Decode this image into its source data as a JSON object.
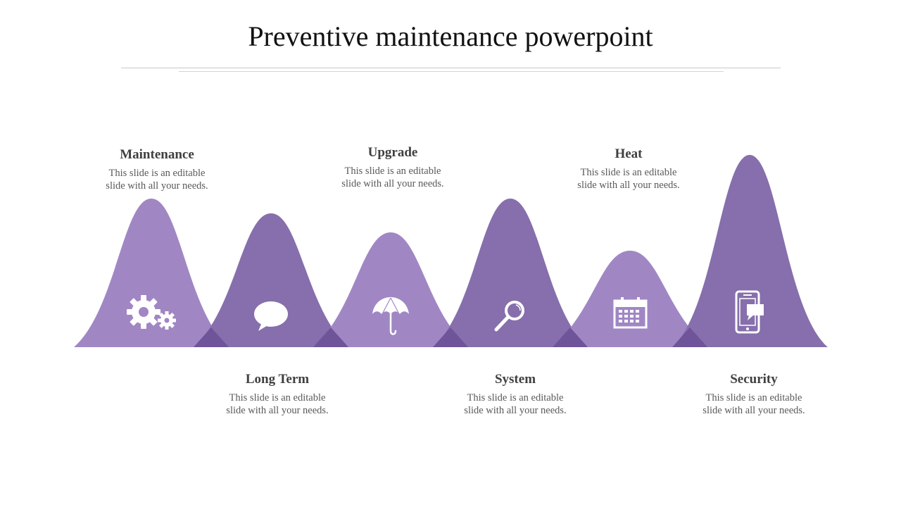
{
  "title": "Preventive maintenance powerpoint",
  "colors": {
    "light": "#a087c4",
    "dark": "#866fac",
    "overlap": "#6f5499",
    "text_heading": "#3f3f3f",
    "text_body": "#595959"
  },
  "items": [
    {
      "heading": "Maintenance",
      "desc_line1": "This slide is an editable",
      "desc_line2": "slide with all your needs.",
      "icon": "gears-icon"
    },
    {
      "heading": "Long Term",
      "desc_line1": "This slide is an editable",
      "desc_line2": "slide with all your needs.",
      "icon": "speech-bubble-icon"
    },
    {
      "heading": "Upgrade",
      "desc_line1": "This slide is an editable",
      "desc_line2": "slide with all your needs.",
      "icon": "umbrella-icon"
    },
    {
      "heading": "System",
      "desc_line1": "This slide is an editable",
      "desc_line2": "slide with all your needs.",
      "icon": "magnifier-icon"
    },
    {
      "heading": "Heat",
      "desc_line1": "This slide is an editable",
      "desc_line2": "slide with all your needs.",
      "icon": "calendar-icon"
    },
    {
      "heading": "Security",
      "desc_line1": "This slide is an editable",
      "desc_line2": "slide with all your needs.",
      "icon": "mobile-phone-icon"
    }
  ]
}
